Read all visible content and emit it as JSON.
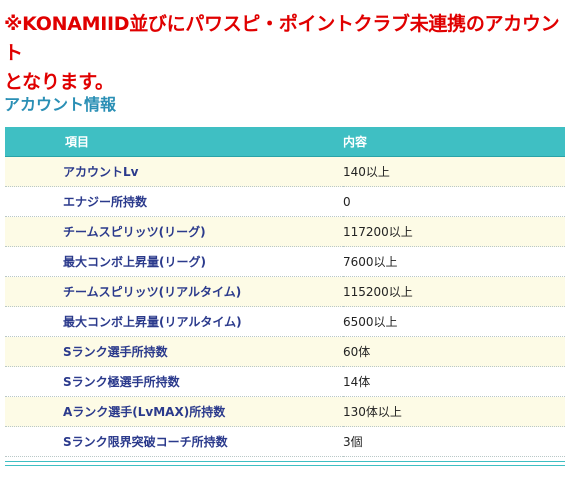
{
  "notice": {
    "line1": "※KONAMIID並びにパワスピ・ポイントクラブ未連携のアカウント",
    "line2": "となります。"
  },
  "section_title": "アカウント情報",
  "table": {
    "headers": {
      "item": "項目",
      "value": "内容"
    },
    "rows": [
      {
        "item": "アカウントLv",
        "value": "140以上"
      },
      {
        "item": "エナジー所持数",
        "value": "0"
      },
      {
        "item": "チームスピリッツ(リーグ)",
        "value": "117200以上"
      },
      {
        "item": "最大コンボ上昇量(リーグ)",
        "value": "7600以上"
      },
      {
        "item": "チームスピリッツ(リアルタイム)",
        "value": "115200以上"
      },
      {
        "item": "最大コンボ上昇量(リアルタイム)",
        "value": "6500以上"
      },
      {
        "item": "Sランク選手所持数",
        "value": "60体"
      },
      {
        "item": "Sランク極選手所持数",
        "value": "14体"
      },
      {
        "item": "Aランク選手(LvMAX)所持数",
        "value": "130体以上"
      },
      {
        "item": "Sランク限界突破コーチ所持数",
        "value": "3個"
      }
    ]
  },
  "colors": {
    "notice": "#e00000",
    "section_title": "#2a8fb5",
    "header_bg": "#3fbfc3",
    "item_text": "#2b3a8c",
    "odd_row_bg": "#fdfbe6"
  }
}
